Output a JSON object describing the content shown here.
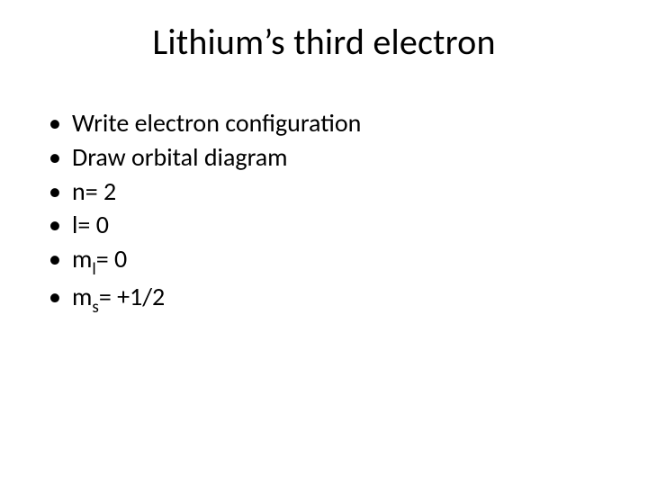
{
  "slide": {
    "title": "Lithium’s third electron",
    "title_fontsize": 40,
    "body_fontsize": 28,
    "background_color": "#ffffff",
    "text_color": "#000000",
    "bullets": [
      {
        "text": "Write electron configuration"
      },
      {
        "text": "Draw orbital diagram"
      },
      {
        "text": "n= 2"
      },
      {
        "text": "l= 0"
      },
      {
        "base": "m",
        "sub": "l",
        "rest": "= 0"
      },
      {
        "base": "m",
        "sub": "s",
        "rest": "= +1/2"
      }
    ]
  }
}
